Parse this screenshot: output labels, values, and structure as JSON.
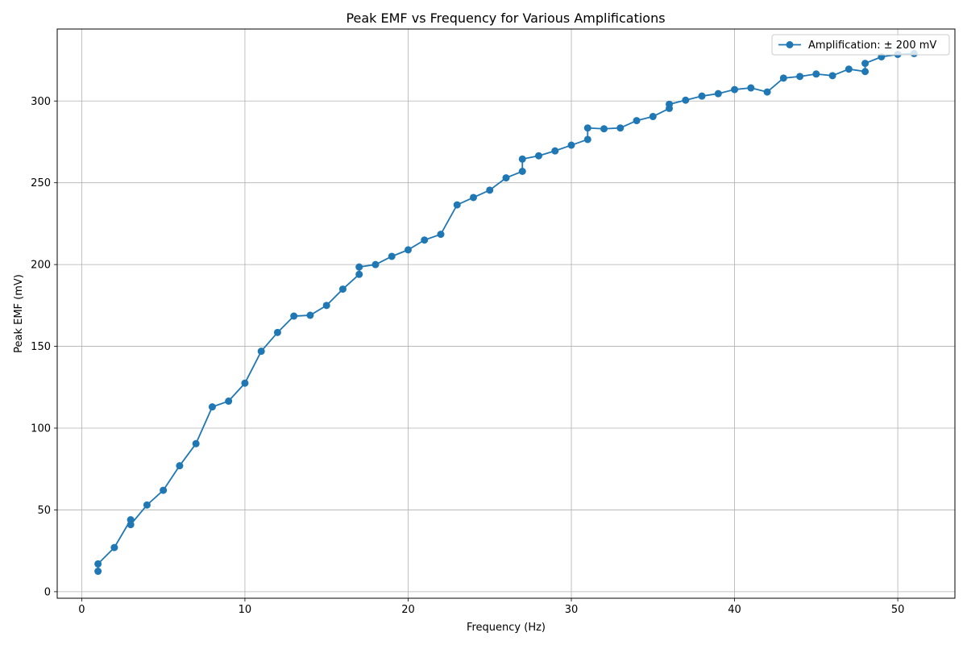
{
  "chart_data": {
    "type": "line",
    "title": "Peak EMF vs Frequency for Various Amplifications",
    "xlabel": "Frequency (Hz)",
    "ylabel": "Peak EMF (mV)",
    "xlim": [
      -1.5,
      53.5
    ],
    "ylim": [
      -4,
      344
    ],
    "xticks": [
      0,
      10,
      20,
      30,
      40,
      50
    ],
    "yticks": [
      0,
      50,
      100,
      150,
      200,
      250,
      300
    ],
    "grid": true,
    "legend_position": "top-right",
    "series": [
      {
        "name": "Amplification: ± 200 mV",
        "color": "#1f77b4",
        "marker": "circle",
        "x": [
          1,
          1,
          2,
          3,
          3,
          4,
          5,
          6,
          7,
          8,
          9,
          10,
          11,
          12,
          13,
          14,
          15,
          16,
          17,
          17,
          18,
          19,
          20,
          21,
          22,
          23,
          24,
          25,
          26,
          27,
          27,
          28,
          29,
          30,
          31,
          31,
          32,
          33,
          34,
          35,
          36,
          36,
          37,
          38,
          39,
          40,
          41,
          42,
          43,
          44,
          45,
          46,
          47,
          48,
          48,
          49,
          50,
          51
        ],
        "y": [
          12.5,
          17,
          27,
          44,
          41,
          53,
          62,
          77,
          90.5,
          113,
          116.5,
          127.5,
          147,
          158.5,
          168.5,
          169,
          175,
          185,
          194,
          198.5,
          200,
          205,
          209,
          215,
          218.5,
          236.5,
          241,
          245.5,
          253,
          257,
          264.5,
          266.5,
          269.5,
          273,
          276.5,
          283.5,
          283,
          283.5,
          288,
          290.5,
          295.5,
          298,
          300.5,
          303,
          304.5,
          307,
          308,
          305.5,
          314,
          315,
          316.5,
          315.5,
          319.5,
          318,
          323,
          327,
          328.5,
          329
        ]
      }
    ]
  }
}
